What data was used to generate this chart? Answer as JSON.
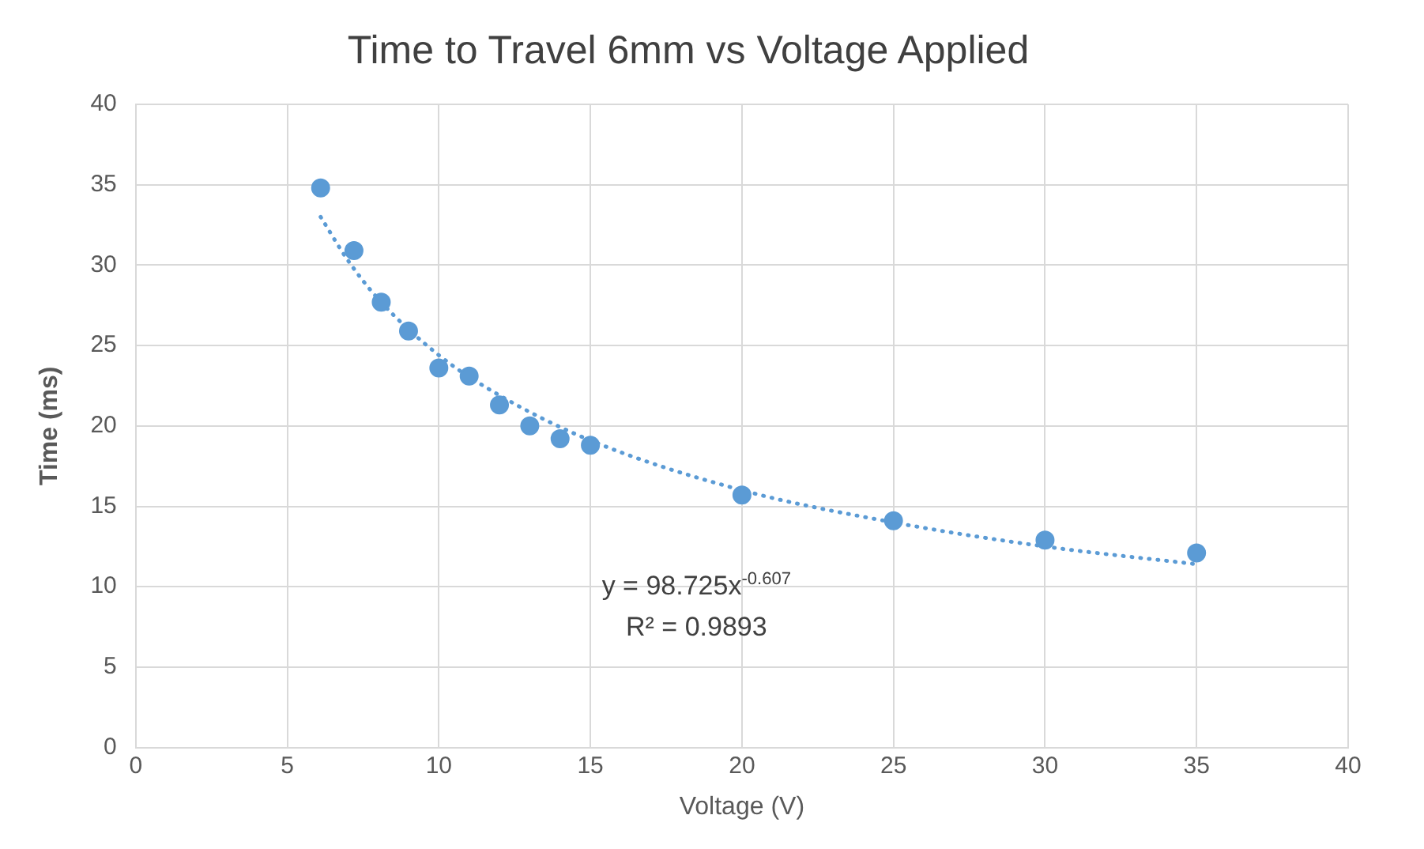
{
  "chart_data": {
    "type": "scatter",
    "title": "Time to Travel 6mm vs Voltage Applied",
    "xlabel": "Voltage (V)",
    "ylabel": "Time (ms)",
    "xlim": [
      0,
      40
    ],
    "xticks": [
      0,
      5,
      10,
      15,
      20,
      25,
      30,
      35,
      40
    ],
    "ylim": [
      0,
      40
    ],
    "yticks": [
      0,
      5,
      10,
      15,
      20,
      25,
      30,
      35,
      40
    ],
    "grid": true,
    "legend": false,
    "marker": "circle",
    "series": [
      {
        "type": "scatter",
        "color": "#5b9bd5",
        "x": [
          6.1,
          7.2,
          8.1,
          9,
          10,
          11,
          12,
          13,
          14,
          15,
          20,
          25,
          30,
          35
        ],
        "values": [
          34.8,
          30.9,
          27.7,
          25.9,
          23.6,
          23.1,
          21.3,
          20.0,
          19.2,
          18.8,
          15.7,
          14.1,
          12.9,
          12.1
        ]
      },
      {
        "type": "line",
        "color": "#5b9bd5",
        "line_style": "dotted",
        "marker": "none",
        "x": [
          6.1,
          7,
          8,
          10,
          12,
          15,
          20,
          25,
          30,
          35
        ],
        "values": [
          33,
          30.3,
          27.9,
          24.4,
          21.9,
          19.1,
          16,
          14,
          12.5,
          11.4
        ]
      }
    ],
    "annotations": [
      "y = 98.725x$^{-0.607}$",
      "R² = 0.9893"
    ]
  }
}
